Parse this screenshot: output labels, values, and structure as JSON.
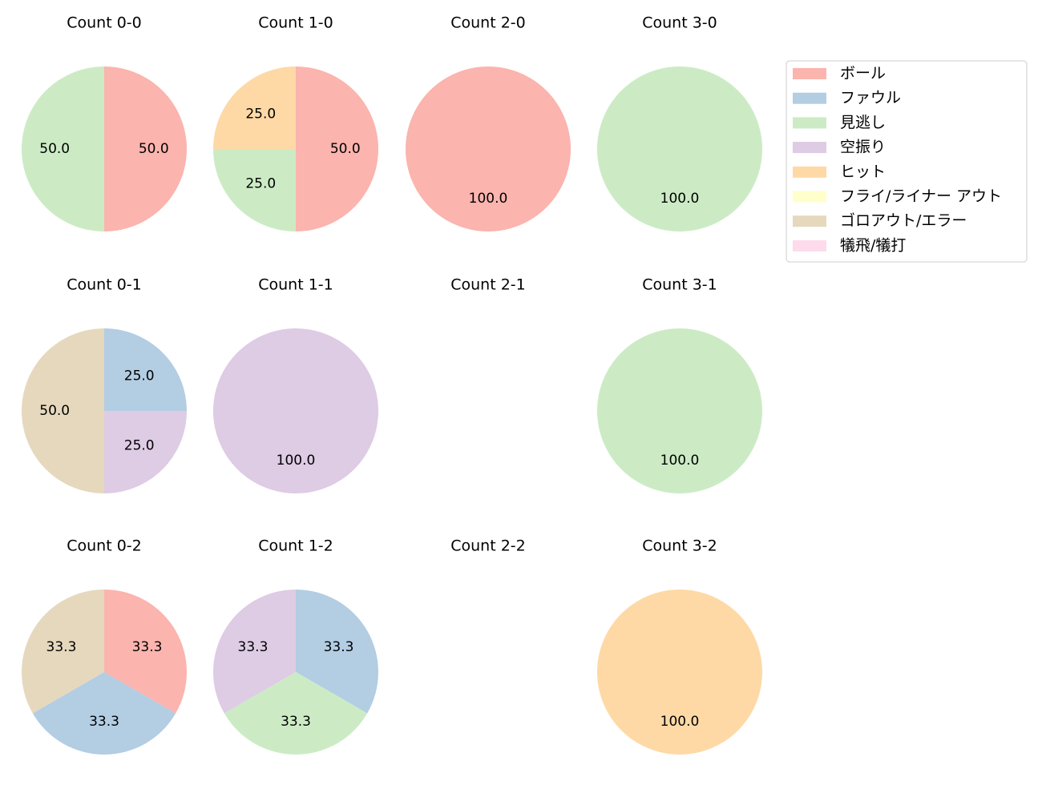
{
  "chart_data": [
    {
      "type": "pie",
      "title": "Count 0-0",
      "categories": [
        "ボール",
        "見逃し"
      ],
      "values": [
        50,
        50
      ],
      "value_labels": [
        "50.0",
        "50.0"
      ],
      "colors": [
        "#fbb4ae",
        "#ccebc5"
      ]
    },
    {
      "type": "pie",
      "title": "Count 1-0",
      "categories": [
        "ボール",
        "見逃し",
        "ヒット"
      ],
      "values": [
        50,
        25,
        25
      ],
      "value_labels": [
        "50.0",
        "25.0",
        "25.0"
      ],
      "colors": [
        "#fbb4ae",
        "#ccebc5",
        "#fed9a6"
      ]
    },
    {
      "type": "pie",
      "title": "Count 2-0",
      "categories": [
        "ボール"
      ],
      "values": [
        100
      ],
      "value_labels": [
        "100.0"
      ],
      "colors": [
        "#fbb4ae"
      ]
    },
    {
      "type": "pie",
      "title": "Count 3-0",
      "categories": [
        "見逃し"
      ],
      "values": [
        100
      ],
      "value_labels": [
        "100.0"
      ],
      "colors": [
        "#ccebc5"
      ]
    },
    {
      "type": "pie",
      "title": "Count 0-1",
      "categories": [
        "ファウル",
        "空振り",
        "ゴロアウト/エラー"
      ],
      "values": [
        25,
        25,
        50
      ],
      "value_labels": [
        "25.0",
        "25.0",
        "50.0"
      ],
      "colors": [
        "#b3cde3",
        "#decbe4",
        "#e5d8bd"
      ]
    },
    {
      "type": "pie",
      "title": "Count 1-1",
      "categories": [
        "空振り"
      ],
      "values": [
        100
      ],
      "value_labels": [
        "100.0"
      ],
      "colors": [
        "#decbe4"
      ]
    },
    {
      "type": "pie",
      "title": "Count 2-1",
      "categories": [],
      "values": [],
      "value_labels": [],
      "colors": []
    },
    {
      "type": "pie",
      "title": "Count 3-1",
      "categories": [
        "見逃し"
      ],
      "values": [
        100
      ],
      "value_labels": [
        "100.0"
      ],
      "colors": [
        "#ccebc5"
      ]
    },
    {
      "type": "pie",
      "title": "Count 0-2",
      "categories": [
        "ボール",
        "ファウル",
        "ゴロアウト/エラー"
      ],
      "values": [
        33.3,
        33.3,
        33.3
      ],
      "value_labels": [
        "33.3",
        "33.3",
        "33.3"
      ],
      "colors": [
        "#fbb4ae",
        "#b3cde3",
        "#e5d8bd"
      ]
    },
    {
      "type": "pie",
      "title": "Count 1-2",
      "categories": [
        "ファウル",
        "見逃し",
        "空振り"
      ],
      "values": [
        33.3,
        33.3,
        33.3
      ],
      "value_labels": [
        "33.3",
        "33.3",
        "33.3"
      ],
      "colors": [
        "#b3cde3",
        "#ccebc5",
        "#decbe4"
      ]
    },
    {
      "type": "pie",
      "title": "Count 2-2",
      "categories": [],
      "values": [],
      "value_labels": [],
      "colors": []
    },
    {
      "type": "pie",
      "title": "Count 3-2",
      "categories": [
        "ヒット"
      ],
      "values": [
        100
      ],
      "value_labels": [
        "100.0"
      ],
      "colors": [
        "#fed9a6"
      ]
    }
  ],
  "legend": {
    "position": "upper right",
    "entries": [
      {
        "name": "ボール",
        "color": "#fbb4ae"
      },
      {
        "name": "ファウル",
        "color": "#b3cde3"
      },
      {
        "name": "見逃し",
        "color": "#ccebc5"
      },
      {
        "name": "空振り",
        "color": "#decbe4"
      },
      {
        "name": "ヒット",
        "color": "#fed9a6"
      },
      {
        "name": "フライ/ライナー アウト",
        "color": "#ffffcc"
      },
      {
        "name": "ゴロアウト/エラー",
        "color": "#e5d8bd"
      },
      {
        "name": "犠飛/犠打",
        "color": "#fddaec"
      }
    ]
  }
}
